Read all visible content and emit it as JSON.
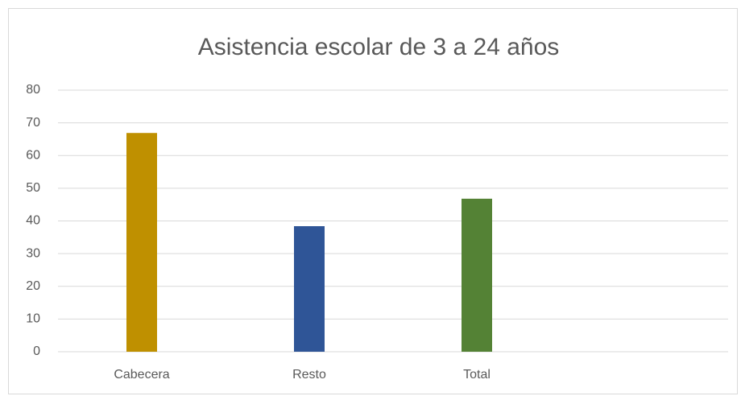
{
  "chart_data": {
    "type": "bar",
    "title": "Asistencia escolar de 3 a 24 años",
    "categories": [
      "Cabecera",
      "Resto",
      "Total",
      null
    ],
    "values": [
      66.9,
      38.4,
      46.8,
      null
    ],
    "colors": [
      "#bf9000",
      "#2f5597",
      "#548235",
      null
    ],
    "ylim": [
      0,
      80
    ],
    "yticks": [
      0,
      10,
      20,
      30,
      40,
      50,
      60,
      70,
      80
    ],
    "grid": true
  }
}
